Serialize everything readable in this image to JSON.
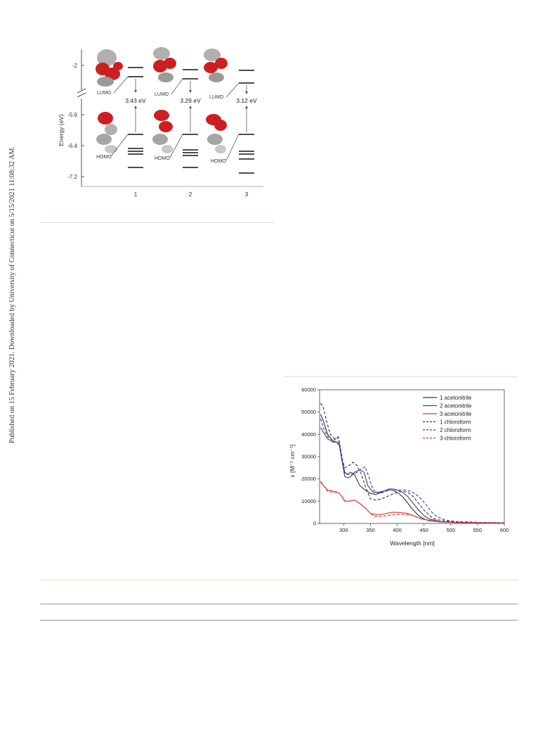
{
  "sidebar_note": "Published on 15 February 2021. Downloaded by University of Connecticut on 5/15/2021 11:08:32 AM.",
  "figure_energy": {
    "ylabel": "Energy (eV)",
    "yticks": [
      "-2",
      "-5.6",
      "-6.4",
      "-7.2"
    ],
    "columns": [
      {
        "label": "1",
        "gap": "3.43 eV",
        "lumo": "LUMO",
        "homo": "HOMO"
      },
      {
        "label": "2",
        "gap": "3.29 eV",
        "lumo": "LUMO",
        "homo": "HOMO"
      },
      {
        "label": "3",
        "gap": "3.12 eV",
        "lumo": "LUMO",
        "homo": "HOMO"
      }
    ],
    "colors": {
      "orbital_red": "#cc1f1f",
      "orbital_grey": "#a9a9a9"
    }
  },
  "chart_data": {
    "type": "line",
    "xlabel": "Wavelength [nm]",
    "ylabel": "ε [M⁻¹ cm⁻¹]",
    "xlim": [
      255,
      600
    ],
    "ylim": [
      0,
      60000
    ],
    "xticks": [
      "300",
      "350",
      "400",
      "450",
      "500",
      "550",
      "600"
    ],
    "yticks": [
      "0",
      "10000",
      "20000",
      "30000",
      "40000",
      "50000",
      "60000"
    ],
    "legend_position": "top-right",
    "series": [
      {
        "name": "1 acetonitrile",
        "color": "#333333",
        "dash": false,
        "points": [
          [
            257,
            49000
          ],
          [
            262,
            46000
          ],
          [
            270,
            40000
          ],
          [
            280,
            37000
          ],
          [
            287,
            36500
          ],
          [
            292,
            35000
          ],
          [
            297,
            28000
          ],
          [
            302,
            23000
          ],
          [
            308,
            22000
          ],
          [
            313,
            23000
          ],
          [
            320,
            22000
          ],
          [
            330,
            17000
          ],
          [
            340,
            15000
          ],
          [
            350,
            13500
          ],
          [
            360,
            13000
          ],
          [
            370,
            14000
          ],
          [
            380,
            15000
          ],
          [
            390,
            15000
          ],
          [
            400,
            14000
          ],
          [
            410,
            12000
          ],
          [
            420,
            9000
          ],
          [
            430,
            6000
          ],
          [
            440,
            3500
          ],
          [
            450,
            2000
          ],
          [
            460,
            1200
          ],
          [
            480,
            700
          ],
          [
            500,
            500
          ],
          [
            550,
            300
          ],
          [
            600,
            200
          ]
        ]
      },
      {
        "name": "2 acetonitrile",
        "color": "#3a3aa0",
        "dash": false,
        "points": [
          [
            257,
            43000
          ],
          [
            262,
            41000
          ],
          [
            270,
            38000
          ],
          [
            280,
            36500
          ],
          [
            287,
            36500
          ],
          [
            292,
            36000
          ],
          [
            297,
            28000
          ],
          [
            302,
            21000
          ],
          [
            308,
            20500
          ],
          [
            313,
            21000
          ],
          [
            320,
            23000
          ],
          [
            330,
            24000
          ],
          [
            338,
            23000
          ],
          [
            345,
            17000
          ],
          [
            355,
            14000
          ],
          [
            365,
            14000
          ],
          [
            375,
            14500
          ],
          [
            385,
            15500
          ],
          [
            392,
            15500
          ],
          [
            400,
            15000
          ],
          [
            410,
            14000
          ],
          [
            420,
            12000
          ],
          [
            430,
            9000
          ],
          [
            440,
            6000
          ],
          [
            450,
            3500
          ],
          [
            460,
            2000
          ],
          [
            480,
            900
          ],
          [
            500,
            500
          ],
          [
            550,
            300
          ],
          [
            600,
            200
          ]
        ]
      },
      {
        "name": "3 acetonitrile",
        "color": "#e03030",
        "dash": false,
        "points": [
          [
            257,
            19000
          ],
          [
            262,
            17000
          ],
          [
            270,
            15000
          ],
          [
            280,
            14500
          ],
          [
            290,
            14000
          ],
          [
            297,
            12000
          ],
          [
            302,
            10000
          ],
          [
            310,
            10000
          ],
          [
            320,
            10500
          ],
          [
            330,
            9000
          ],
          [
            340,
            7000
          ],
          [
            350,
            4500
          ],
          [
            360,
            4000
          ],
          [
            370,
            4000
          ],
          [
            380,
            4500
          ],
          [
            390,
            5000
          ],
          [
            400,
            5000
          ],
          [
            410,
            4800
          ],
          [
            420,
            4500
          ],
          [
            430,
            3500
          ],
          [
            440,
            2500
          ],
          [
            450,
            1800
          ],
          [
            470,
            1000
          ],
          [
            500,
            500
          ],
          [
            550,
            300
          ],
          [
            600,
            200
          ]
        ]
      },
      {
        "name": "1 chloroform",
        "color": "#333333",
        "dash": true,
        "points": [
          [
            257,
            54000
          ],
          [
            262,
            52000
          ],
          [
            268,
            46000
          ],
          [
            275,
            40000
          ],
          [
            283,
            38000
          ],
          [
            290,
            38500
          ],
          [
            296,
            30000
          ],
          [
            302,
            25000
          ],
          [
            310,
            26000
          ],
          [
            318,
            27500
          ],
          [
            325,
            26000
          ],
          [
            333,
            22000
          ],
          [
            340,
            17000
          ],
          [
            350,
            11000
          ],
          [
            360,
            10500
          ],
          [
            370,
            11000
          ],
          [
            380,
            12000
          ],
          [
            390,
            13000
          ],
          [
            400,
            14000
          ],
          [
            410,
            14500
          ],
          [
            420,
            14000
          ],
          [
            430,
            12000
          ],
          [
            440,
            9000
          ],
          [
            450,
            6000
          ],
          [
            460,
            3500
          ],
          [
            470,
            2000
          ],
          [
            490,
            1000
          ],
          [
            520,
            500
          ],
          [
            600,
            200
          ]
        ]
      },
      {
        "name": "2 chloroform",
        "color": "#3a3aa0",
        "dash": true,
        "points": [
          [
            257,
            47000
          ],
          [
            262,
            43000
          ],
          [
            270,
            39000
          ],
          [
            280,
            37000
          ],
          [
            290,
            39000
          ],
          [
            296,
            31000
          ],
          [
            302,
            22000
          ],
          [
            310,
            22000
          ],
          [
            320,
            22000
          ],
          [
            330,
            24000
          ],
          [
            340,
            25500
          ],
          [
            347,
            21000
          ],
          [
            355,
            15000
          ],
          [
            365,
            13500
          ],
          [
            375,
            14000
          ],
          [
            385,
            15000
          ],
          [
            395,
            15000
          ],
          [
            405,
            15000
          ],
          [
            415,
            15000
          ],
          [
            425,
            14500
          ],
          [
            435,
            13000
          ],
          [
            445,
            11000
          ],
          [
            455,
            8000
          ],
          [
            465,
            5000
          ],
          [
            475,
            3000
          ],
          [
            490,
            1500
          ],
          [
            510,
            900
          ],
          [
            550,
            500
          ],
          [
            600,
            300
          ]
        ]
      },
      {
        "name": "3 chloroform",
        "color": "#e03030",
        "dash": true,
        "points": [
          [
            257,
            18500
          ],
          [
            262,
            17000
          ],
          [
            270,
            14500
          ],
          [
            280,
            14000
          ],
          [
            290,
            14000
          ],
          [
            297,
            12000
          ],
          [
            303,
            10000
          ],
          [
            310,
            10000
          ],
          [
            320,
            10500
          ],
          [
            330,
            9000
          ],
          [
            340,
            7000
          ],
          [
            350,
            4500
          ],
          [
            360,
            3000
          ],
          [
            370,
            3000
          ],
          [
            380,
            3500
          ],
          [
            390,
            3800
          ],
          [
            400,
            4000
          ],
          [
            410,
            4000
          ],
          [
            420,
            4000
          ],
          [
            430,
            3500
          ],
          [
            440,
            2500
          ],
          [
            450,
            1800
          ],
          [
            470,
            1000
          ],
          [
            500,
            500
          ],
          [
            550,
            300
          ],
          [
            600,
            200
          ]
        ]
      }
    ]
  }
}
